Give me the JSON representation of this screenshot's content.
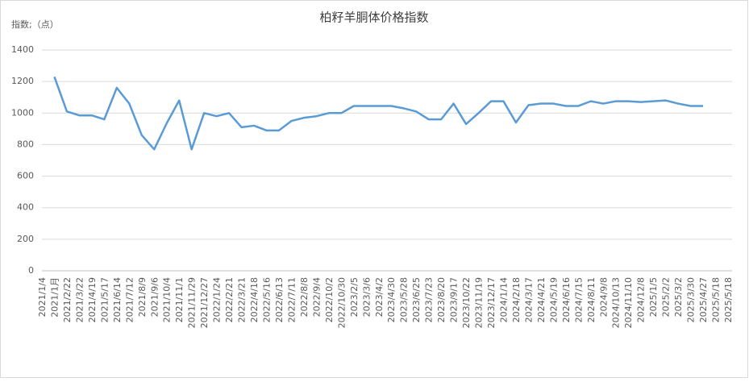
{
  "chart_data": {
    "type": "line",
    "title": "柏籽羊胴体价格指数",
    "y_label": "指数;（点）",
    "categories": [
      "2021/1/4",
      "2021/1月",
      "2021/2/22",
      "2021/3/22",
      "2021/4/19",
      "2021/5/17",
      "2021/6/14",
      "2021/7/12",
      "2021/8/9",
      "2021/9/6",
      "2021/10/4",
      "2021/11/1",
      "2021/11/29",
      "2021/12/27",
      "2022/1/24",
      "2022/2/21",
      "2022/3/21",
      "2022/4/18",
      "2022/5/16",
      "2022/6/13",
      "2022/7/11",
      "2022/8/8",
      "2022/9/4",
      "2022/10/2",
      "2022/10/30",
      "2023/2/5",
      "2023/3/6",
      "2023/4/2",
      "2023/4/30",
      "2023/5/28",
      "2023/6/25",
      "2023/7/23",
      "2023/8/20",
      "2023/9/17",
      "2023/10/22",
      "2023/11/19",
      "2023/12/17",
      "2024/1/14",
      "2024/2/18",
      "2024/3/17",
      "2024/4/21",
      "2024/5/19",
      "2024/6/16",
      "2024/7/15",
      "2024/8/11",
      "2024/9/8",
      "2024/10/13",
      "2024/11/10",
      "2024/12/8",
      "2025/1/5",
      "2025/2/2",
      "2025/3/2",
      "2025/3/30",
      "2025/4/27",
      "2025/5/18",
      "2025/5/18"
    ],
    "values": [
      null,
      1230,
      1010,
      985,
      985,
      960,
      1160,
      1060,
      860,
      770,
      935,
      1080,
      770,
      1000,
      980,
      1000,
      910,
      920,
      890,
      890,
      950,
      970,
      980,
      1000,
      1000,
      1045,
      1045,
      1045,
      1045,
      1030,
      1010,
      960,
      960,
      1060,
      930,
      1000,
      1075,
      1075,
      940,
      1050,
      1060,
      1060,
      1045,
      1045,
      1075,
      1060,
      1075,
      1075,
      1070,
      1075,
      1080,
      1060,
      1045,
      1045,
      null,
      null
    ],
    "color": "#5b9bd5",
    "ylim": [
      0,
      1400
    ],
    "yticks": [
      0,
      200,
      400,
      600,
      800,
      1000,
      1200,
      1400
    ],
    "grid": true
  }
}
